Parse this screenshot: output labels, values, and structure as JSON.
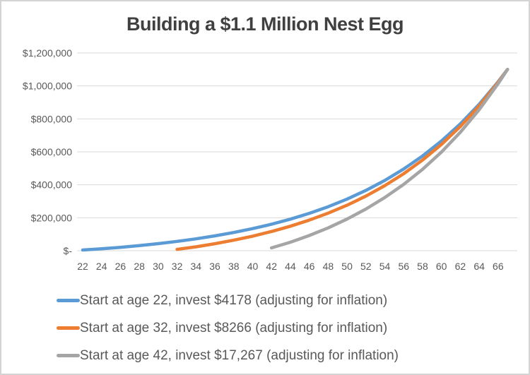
{
  "window": {
    "background_color": "#ffffff",
    "border_color": "#d4d4d4"
  },
  "chart_data": {
    "type": "line",
    "title": "Building a $1.1 Million Nest Egg",
    "title_color": "#404040",
    "axis_text_color": "#595959",
    "gridline_color": "#d9d9d9",
    "grid": true,
    "legend_position": "bottom-left",
    "x_axis": {
      "label": "",
      "ticks": [
        22,
        24,
        26,
        28,
        30,
        32,
        34,
        36,
        38,
        40,
        42,
        44,
        46,
        48,
        50,
        52,
        54,
        56,
        58,
        60,
        62,
        64,
        66
      ],
      "min": 22,
      "max": 67
    },
    "y_axis": {
      "label": "",
      "tick_labels": [
        "$-",
        "$200,000",
        "$400,000",
        "$600,000",
        "$800,000",
        "$1,000,000",
        "$1,200,000"
      ],
      "tick_values": [
        0,
        200000,
        400000,
        600000,
        800000,
        1000000,
        1200000
      ],
      "min": 0,
      "max": 1200000
    },
    "series": [
      {
        "name": "Start at age 22, invest $4178 (adjusting for inflation)",
        "color": "#5B9BD5",
        "start_age": 22,
        "annual_investment": "$4178",
        "ages": [
          22,
          24,
          26,
          28,
          30,
          32,
          34,
          36,
          38,
          40,
          42,
          44,
          46,
          48,
          50,
          52,
          54,
          56,
          58,
          60,
          62,
          64,
          66,
          67
        ],
        "values": [
          4200,
          11500,
          20600,
          31000,
          43000,
          56600,
          72200,
          90100,
          110600,
          134000,
          160900,
          191600,
          226800,
          267100,
          313200,
          366000,
          426500,
          495700,
          575000,
          665700,
          769600,
          888500,
          1024700,
          1100000
        ]
      },
      {
        "name": "Start at age 32, invest $8266 (adjusting for inflation)",
        "color": "#ED7D31",
        "start_age": 32,
        "annual_investment": "$8266",
        "ages": [
          32,
          34,
          36,
          38,
          40,
          42,
          44,
          46,
          48,
          50,
          52,
          54,
          56,
          58,
          60,
          62,
          64,
          66,
          67
        ],
        "values": [
          8300,
          23700,
          42500,
          63900,
          88500,
          116600,
          148800,
          185600,
          227800,
          276100,
          331400,
          394700,
          467200,
          550200,
          645200,
          754000,
          878500,
          1021100,
          1100000
        ]
      },
      {
        "name": "Start at age 42, invest $17,267 (adjusting for inflation)",
        "color": "#A5A5A5",
        "start_age": 42,
        "annual_investment": "$17,267",
        "ages": [
          42,
          44,
          46,
          48,
          50,
          52,
          54,
          56,
          58,
          60,
          62,
          64,
          66,
          67
        ],
        "values": [
          17300,
          51500,
          92100,
          138600,
          191900,
          252800,
          322600,
          402500,
          494000,
          598700,
          718600,
          855900,
          1013100,
          1100000
        ]
      }
    ]
  }
}
